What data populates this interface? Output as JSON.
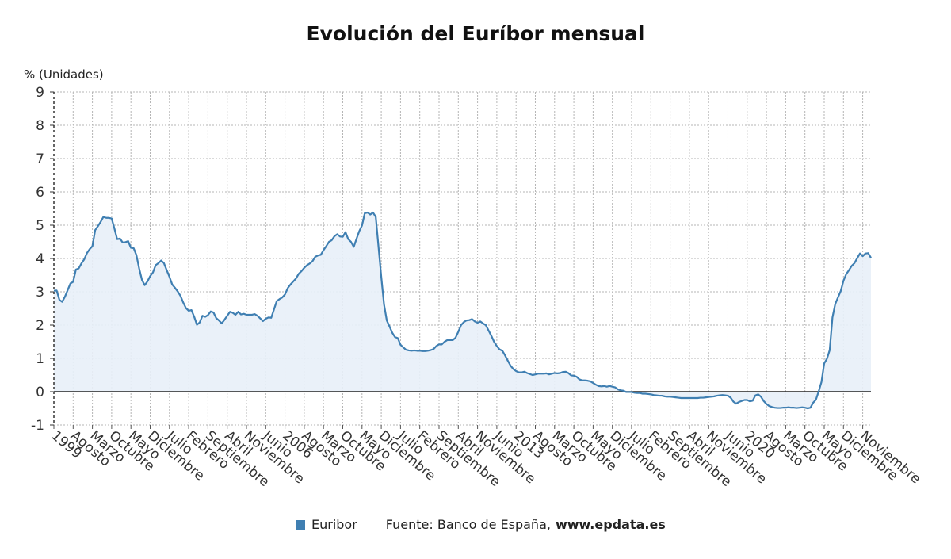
{
  "chart_data": {
    "type": "area",
    "title": "Evolución del Euríbor mensual",
    "ylabel": "% (Unidades)",
    "ylim": [
      -1,
      9
    ],
    "y_ticks": [
      -1,
      0,
      1,
      2,
      3,
      4,
      5,
      6,
      7,
      8,
      9
    ],
    "grid": true,
    "x_ticks": [
      "1999",
      "Agosto",
      "Marzo",
      "Octubre",
      "Mayo",
      "Diciembre",
      "Julio",
      "Febrero",
      "Septiembre",
      "Abril",
      "Noviembre",
      "Junio",
      "2006",
      "Agosto",
      "Marzo",
      "Octubre",
      "Mayo",
      "Diciembre",
      "Julio",
      "Febrero",
      "Septiembre",
      "Abril",
      "Noviembre",
      "Junio",
      "2013",
      "Agosto",
      "Marzo",
      "Octubre",
      "Mayo",
      "Diciembre",
      "Julio",
      "Febrero",
      "Septiembre",
      "Abril",
      "Noviembre",
      "Junio",
      "2020",
      "Agosto",
      "Marzo",
      "Octubre",
      "Mayo",
      "Diciembre",
      "Noviembre"
    ],
    "series": [
      {
        "name": "Euribor",
        "color": "#3f7fb2",
        "fill": "#e8f0f8",
        "points": [
          [
            0,
            3.03
          ],
          [
            1,
            3.04
          ],
          [
            2,
            2.76
          ],
          [
            3,
            2.7
          ],
          [
            4,
            2.85
          ],
          [
            5,
            3.05
          ],
          [
            6,
            3.25
          ],
          [
            7,
            3.3
          ],
          [
            8,
            3.67
          ],
          [
            9,
            3.7
          ],
          [
            10,
            3.85
          ],
          [
            11,
            3.97
          ],
          [
            12,
            4.16
          ],
          [
            13,
            4.28
          ],
          [
            14,
            4.37
          ],
          [
            15,
            4.85
          ],
          [
            16,
            4.97
          ],
          [
            17,
            5.1
          ],
          [
            18,
            5.25
          ],
          [
            19,
            5.22
          ],
          [
            20,
            5.22
          ],
          [
            21,
            5.2
          ],
          [
            22,
            4.9
          ],
          [
            23,
            4.58
          ],
          [
            24,
            4.6
          ],
          [
            25,
            4.48
          ],
          [
            26,
            4.49
          ],
          [
            27,
            4.52
          ],
          [
            28,
            4.32
          ],
          [
            29,
            4.31
          ],
          [
            30,
            4.1
          ],
          [
            31,
            3.7
          ],
          [
            32,
            3.36
          ],
          [
            33,
            3.2
          ],
          [
            34,
            3.31
          ],
          [
            35,
            3.47
          ],
          [
            36,
            3.58
          ],
          [
            37,
            3.8
          ],
          [
            38,
            3.86
          ],
          [
            39,
            3.94
          ],
          [
            40,
            3.86
          ],
          [
            41,
            3.65
          ],
          [
            42,
            3.45
          ],
          [
            43,
            3.22
          ],
          [
            44,
            3.12
          ],
          [
            45,
            3.01
          ],
          [
            46,
            2.88
          ],
          [
            47,
            2.68
          ],
          [
            48,
            2.51
          ],
          [
            49,
            2.43
          ],
          [
            50,
            2.45
          ],
          [
            51,
            2.25
          ],
          [
            52,
            2.01
          ],
          [
            53,
            2.08
          ],
          [
            54,
            2.28
          ],
          [
            55,
            2.25
          ],
          [
            56,
            2.3
          ],
          [
            57,
            2.41
          ],
          [
            58,
            2.38
          ],
          [
            59,
            2.21
          ],
          [
            60,
            2.14
          ],
          [
            61,
            2.05
          ],
          [
            62,
            2.16
          ],
          [
            63,
            2.28
          ],
          [
            64,
            2.4
          ],
          [
            65,
            2.37
          ],
          [
            66,
            2.31
          ],
          [
            67,
            2.4
          ],
          [
            68,
            2.32
          ],
          [
            69,
            2.34
          ],
          [
            70,
            2.31
          ],
          [
            71,
            2.31
          ],
          [
            72,
            2.31
          ],
          [
            73,
            2.33
          ],
          [
            74,
            2.28
          ],
          [
            75,
            2.2
          ],
          [
            76,
            2.12
          ],
          [
            77,
            2.19
          ],
          [
            78,
            2.23
          ],
          [
            79,
            2.22
          ],
          [
            80,
            2.47
          ],
          [
            81,
            2.72
          ],
          [
            82,
            2.78
          ],
          [
            83,
            2.83
          ],
          [
            84,
            2.92
          ],
          [
            85,
            3.11
          ],
          [
            86,
            3.22
          ],
          [
            87,
            3.31
          ],
          [
            88,
            3.4
          ],
          [
            89,
            3.54
          ],
          [
            90,
            3.62
          ],
          [
            91,
            3.72
          ],
          [
            92,
            3.8
          ],
          [
            93,
            3.85
          ],
          [
            94,
            3.92
          ],
          [
            95,
            4.05
          ],
          [
            96,
            4.09
          ],
          [
            97,
            4.11
          ],
          [
            98,
            4.25
          ],
          [
            99,
            4.37
          ],
          [
            100,
            4.5
          ],
          [
            101,
            4.55
          ],
          [
            102,
            4.67
          ],
          [
            103,
            4.73
          ],
          [
            104,
            4.66
          ],
          [
            105,
            4.65
          ],
          [
            106,
            4.79
          ],
          [
            107,
            4.58
          ],
          [
            108,
            4.5
          ],
          [
            109,
            4.35
          ],
          [
            110,
            4.59
          ],
          [
            111,
            4.82
          ],
          [
            112,
            4.99
          ],
          [
            113,
            5.36
          ],
          [
            114,
            5.38
          ],
          [
            115,
            5.32
          ],
          [
            116,
            5.38
          ],
          [
            117,
            5.25
          ],
          [
            118,
            4.35
          ],
          [
            119,
            3.45
          ],
          [
            120,
            2.62
          ],
          [
            121,
            2.14
          ],
          [
            122,
            1.96
          ],
          [
            123,
            1.77
          ],
          [
            124,
            1.64
          ],
          [
            125,
            1.61
          ],
          [
            126,
            1.41
          ],
          [
            127,
            1.33
          ],
          [
            128,
            1.26
          ],
          [
            129,
            1.24
          ],
          [
            130,
            1.23
          ],
          [
            131,
            1.24
          ],
          [
            132,
            1.23
          ],
          [
            133,
            1.23
          ],
          [
            134,
            1.22
          ],
          [
            135,
            1.22
          ],
          [
            136,
            1.23
          ],
          [
            137,
            1.25
          ],
          [
            138,
            1.28
          ],
          [
            139,
            1.37
          ],
          [
            140,
            1.42
          ],
          [
            141,
            1.42
          ],
          [
            142,
            1.5
          ],
          [
            143,
            1.55
          ],
          [
            144,
            1.55
          ],
          [
            145,
            1.55
          ],
          [
            146,
            1.62
          ],
          [
            147,
            1.8
          ],
          [
            148,
            2.0
          ],
          [
            149,
            2.09
          ],
          [
            150,
            2.14
          ],
          [
            151,
            2.15
          ],
          [
            152,
            2.18
          ],
          [
            153,
            2.11
          ],
          [
            154,
            2.07
          ],
          [
            155,
            2.11
          ],
          [
            156,
            2.05
          ],
          [
            157,
            2.0
          ],
          [
            158,
            1.84
          ],
          [
            159,
            1.68
          ],
          [
            160,
            1.5
          ],
          [
            161,
            1.37
          ],
          [
            162,
            1.27
          ],
          [
            163,
            1.23
          ],
          [
            164,
            1.09
          ],
          [
            165,
            0.93
          ],
          [
            166,
            0.78
          ],
          [
            167,
            0.68
          ],
          [
            168,
            0.62
          ],
          [
            169,
            0.58
          ],
          [
            170,
            0.58
          ],
          [
            171,
            0.6
          ],
          [
            172,
            0.56
          ],
          [
            173,
            0.53
          ],
          [
            174,
            0.5
          ],
          [
            175,
            0.52
          ],
          [
            176,
            0.54
          ],
          [
            177,
            0.54
          ],
          [
            178,
            0.54
          ],
          [
            179,
            0.55
          ],
          [
            180,
            0.52
          ],
          [
            181,
            0.54
          ],
          [
            182,
            0.56
          ],
          [
            183,
            0.55
          ],
          [
            184,
            0.56
          ],
          [
            185,
            0.59
          ],
          [
            186,
            0.6
          ],
          [
            187,
            0.56
          ],
          [
            188,
            0.49
          ],
          [
            189,
            0.48
          ],
          [
            190,
            0.45
          ],
          [
            191,
            0.37
          ],
          [
            192,
            0.34
          ],
          [
            193,
            0.34
          ],
          [
            194,
            0.33
          ],
          [
            195,
            0.31
          ],
          [
            196,
            0.26
          ],
          [
            197,
            0.21
          ],
          [
            198,
            0.17
          ],
          [
            199,
            0.16
          ],
          [
            200,
            0.17
          ],
          [
            201,
            0.15
          ],
          [
            202,
            0.17
          ],
          [
            203,
            0.15
          ],
          [
            204,
            0.13
          ],
          [
            205,
            0.07
          ],
          [
            206,
            0.04
          ],
          [
            207,
            0.03
          ],
          [
            208,
            -0.01
          ],
          [
            209,
            -0.01
          ],
          [
            210,
            -0.01
          ],
          [
            211,
            -0.03
          ],
          [
            212,
            -0.04
          ],
          [
            213,
            -0.04
          ],
          [
            214,
            -0.06
          ],
          [
            215,
            -0.06
          ],
          [
            216,
            -0.07
          ],
          [
            217,
            -0.08
          ],
          [
            218,
            -0.1
          ],
          [
            219,
            -0.11
          ],
          [
            220,
            -0.12
          ],
          [
            221,
            -0.12
          ],
          [
            222,
            -0.14
          ],
          [
            223,
            -0.15
          ],
          [
            224,
            -0.15
          ],
          [
            225,
            -0.16
          ],
          [
            226,
            -0.17
          ],
          [
            227,
            -0.18
          ],
          [
            228,
            -0.19
          ],
          [
            229,
            -0.19
          ],
          [
            230,
            -0.19
          ],
          [
            231,
            -0.19
          ],
          [
            232,
            -0.19
          ],
          [
            233,
            -0.19
          ],
          [
            234,
            -0.19
          ],
          [
            235,
            -0.18
          ],
          [
            236,
            -0.18
          ],
          [
            237,
            -0.17
          ],
          [
            238,
            -0.16
          ],
          [
            239,
            -0.15
          ],
          [
            240,
            -0.14
          ],
          [
            241,
            -0.12
          ],
          [
            242,
            -0.11
          ],
          [
            243,
            -0.1
          ],
          [
            244,
            -0.11
          ],
          [
            245,
            -0.12
          ],
          [
            246,
            -0.18
          ],
          [
            247,
            -0.3
          ],
          [
            248,
            -0.36
          ],
          [
            249,
            -0.31
          ],
          [
            250,
            -0.28
          ],
          [
            251,
            -0.25
          ],
          [
            252,
            -0.25
          ],
          [
            253,
            -0.29
          ],
          [
            254,
            -0.27
          ],
          [
            255,
            -0.11
          ],
          [
            256,
            -0.08
          ],
          [
            257,
            -0.15
          ],
          [
            258,
            -0.28
          ],
          [
            259,
            -0.37
          ],
          [
            260,
            -0.43
          ],
          [
            261,
            -0.46
          ],
          [
            262,
            -0.48
          ],
          [
            263,
            -0.49
          ],
          [
            264,
            -0.49
          ],
          [
            265,
            -0.48
          ],
          [
            266,
            -0.48
          ],
          [
            267,
            -0.47
          ],
          [
            268,
            -0.48
          ],
          [
            269,
            -0.48
          ],
          [
            270,
            -0.49
          ],
          [
            271,
            -0.48
          ],
          [
            272,
            -0.47
          ],
          [
            273,
            -0.48
          ],
          [
            274,
            -0.5
          ],
          [
            275,
            -0.48
          ],
          [
            276,
            -0.33
          ],
          [
            277,
            -0.24
          ],
          [
            278,
            0.01
          ],
          [
            279,
            0.29
          ],
          [
            280,
            0.85
          ],
          [
            281,
            0.99
          ],
          [
            282,
            1.25
          ],
          [
            283,
            2.23
          ],
          [
            284,
            2.63
          ],
          [
            285,
            2.83
          ],
          [
            286,
            3.02
          ],
          [
            287,
            3.33
          ],
          [
            288,
            3.53
          ],
          [
            289,
            3.65
          ],
          [
            290,
            3.78
          ],
          [
            291,
            3.86
          ],
          [
            292,
            4.01
          ],
          [
            293,
            4.15
          ],
          [
            294,
            4.07
          ],
          [
            295,
            4.15
          ],
          [
            296,
            4.16
          ],
          [
            297,
            4.02
          ]
        ]
      }
    ]
  },
  "legend": {
    "series_name": "Euribor",
    "source_label": "Fuente: Banco de España,",
    "source_url": "www.epdata.es"
  }
}
